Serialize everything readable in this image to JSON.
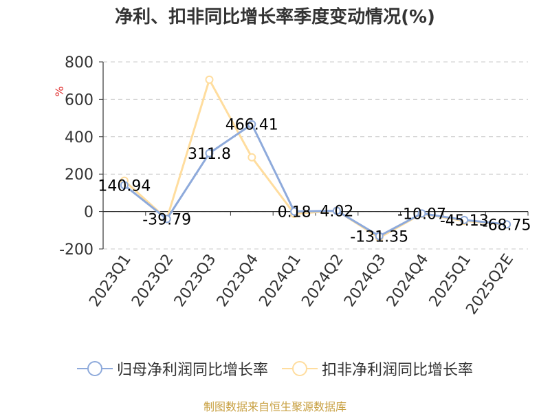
{
  "title": "净利、扣非同比增长率季度变动情况(%)",
  "source": "制图数据来自恒生聚源数据库",
  "chart_data": {
    "type": "line",
    "ylabel": "%",
    "ylim": [
      -200,
      800
    ],
    "yticks": [
      -200,
      0,
      200,
      400,
      600,
      800
    ],
    "grid": true,
    "legend_position": "bottom",
    "categories": [
      "2023Q1",
      "2023Q2",
      "2023Q3",
      "2023Q4",
      "2024Q1",
      "2024Q2",
      "2024Q3",
      "2024Q4",
      "2025Q1",
      "2025Q2E"
    ],
    "series": [
      {
        "name": "归母净利润同比增长率",
        "color": "#8eaadb",
        "values": [
          140.94,
          -39.79,
          311.8,
          466.41,
          0.18,
          4.02,
          -131.35,
          -10.07,
          -45.13,
          -68.75
        ],
        "labels": [
          "140.94",
          "-39.79",
          "311.8",
          "466.41",
          "0.18",
          "4.02",
          "-131.35",
          "-10.07",
          "-45.13",
          "-68.75"
        ],
        "show_labels": true
      },
      {
        "name": "扣非净利润同比增长率",
        "color": "#ffdd9e",
        "values": [
          165,
          -40,
          705,
          290,
          -12,
          5,
          -140,
          -12,
          -50,
          -70
        ],
        "show_labels": false
      }
    ]
  }
}
